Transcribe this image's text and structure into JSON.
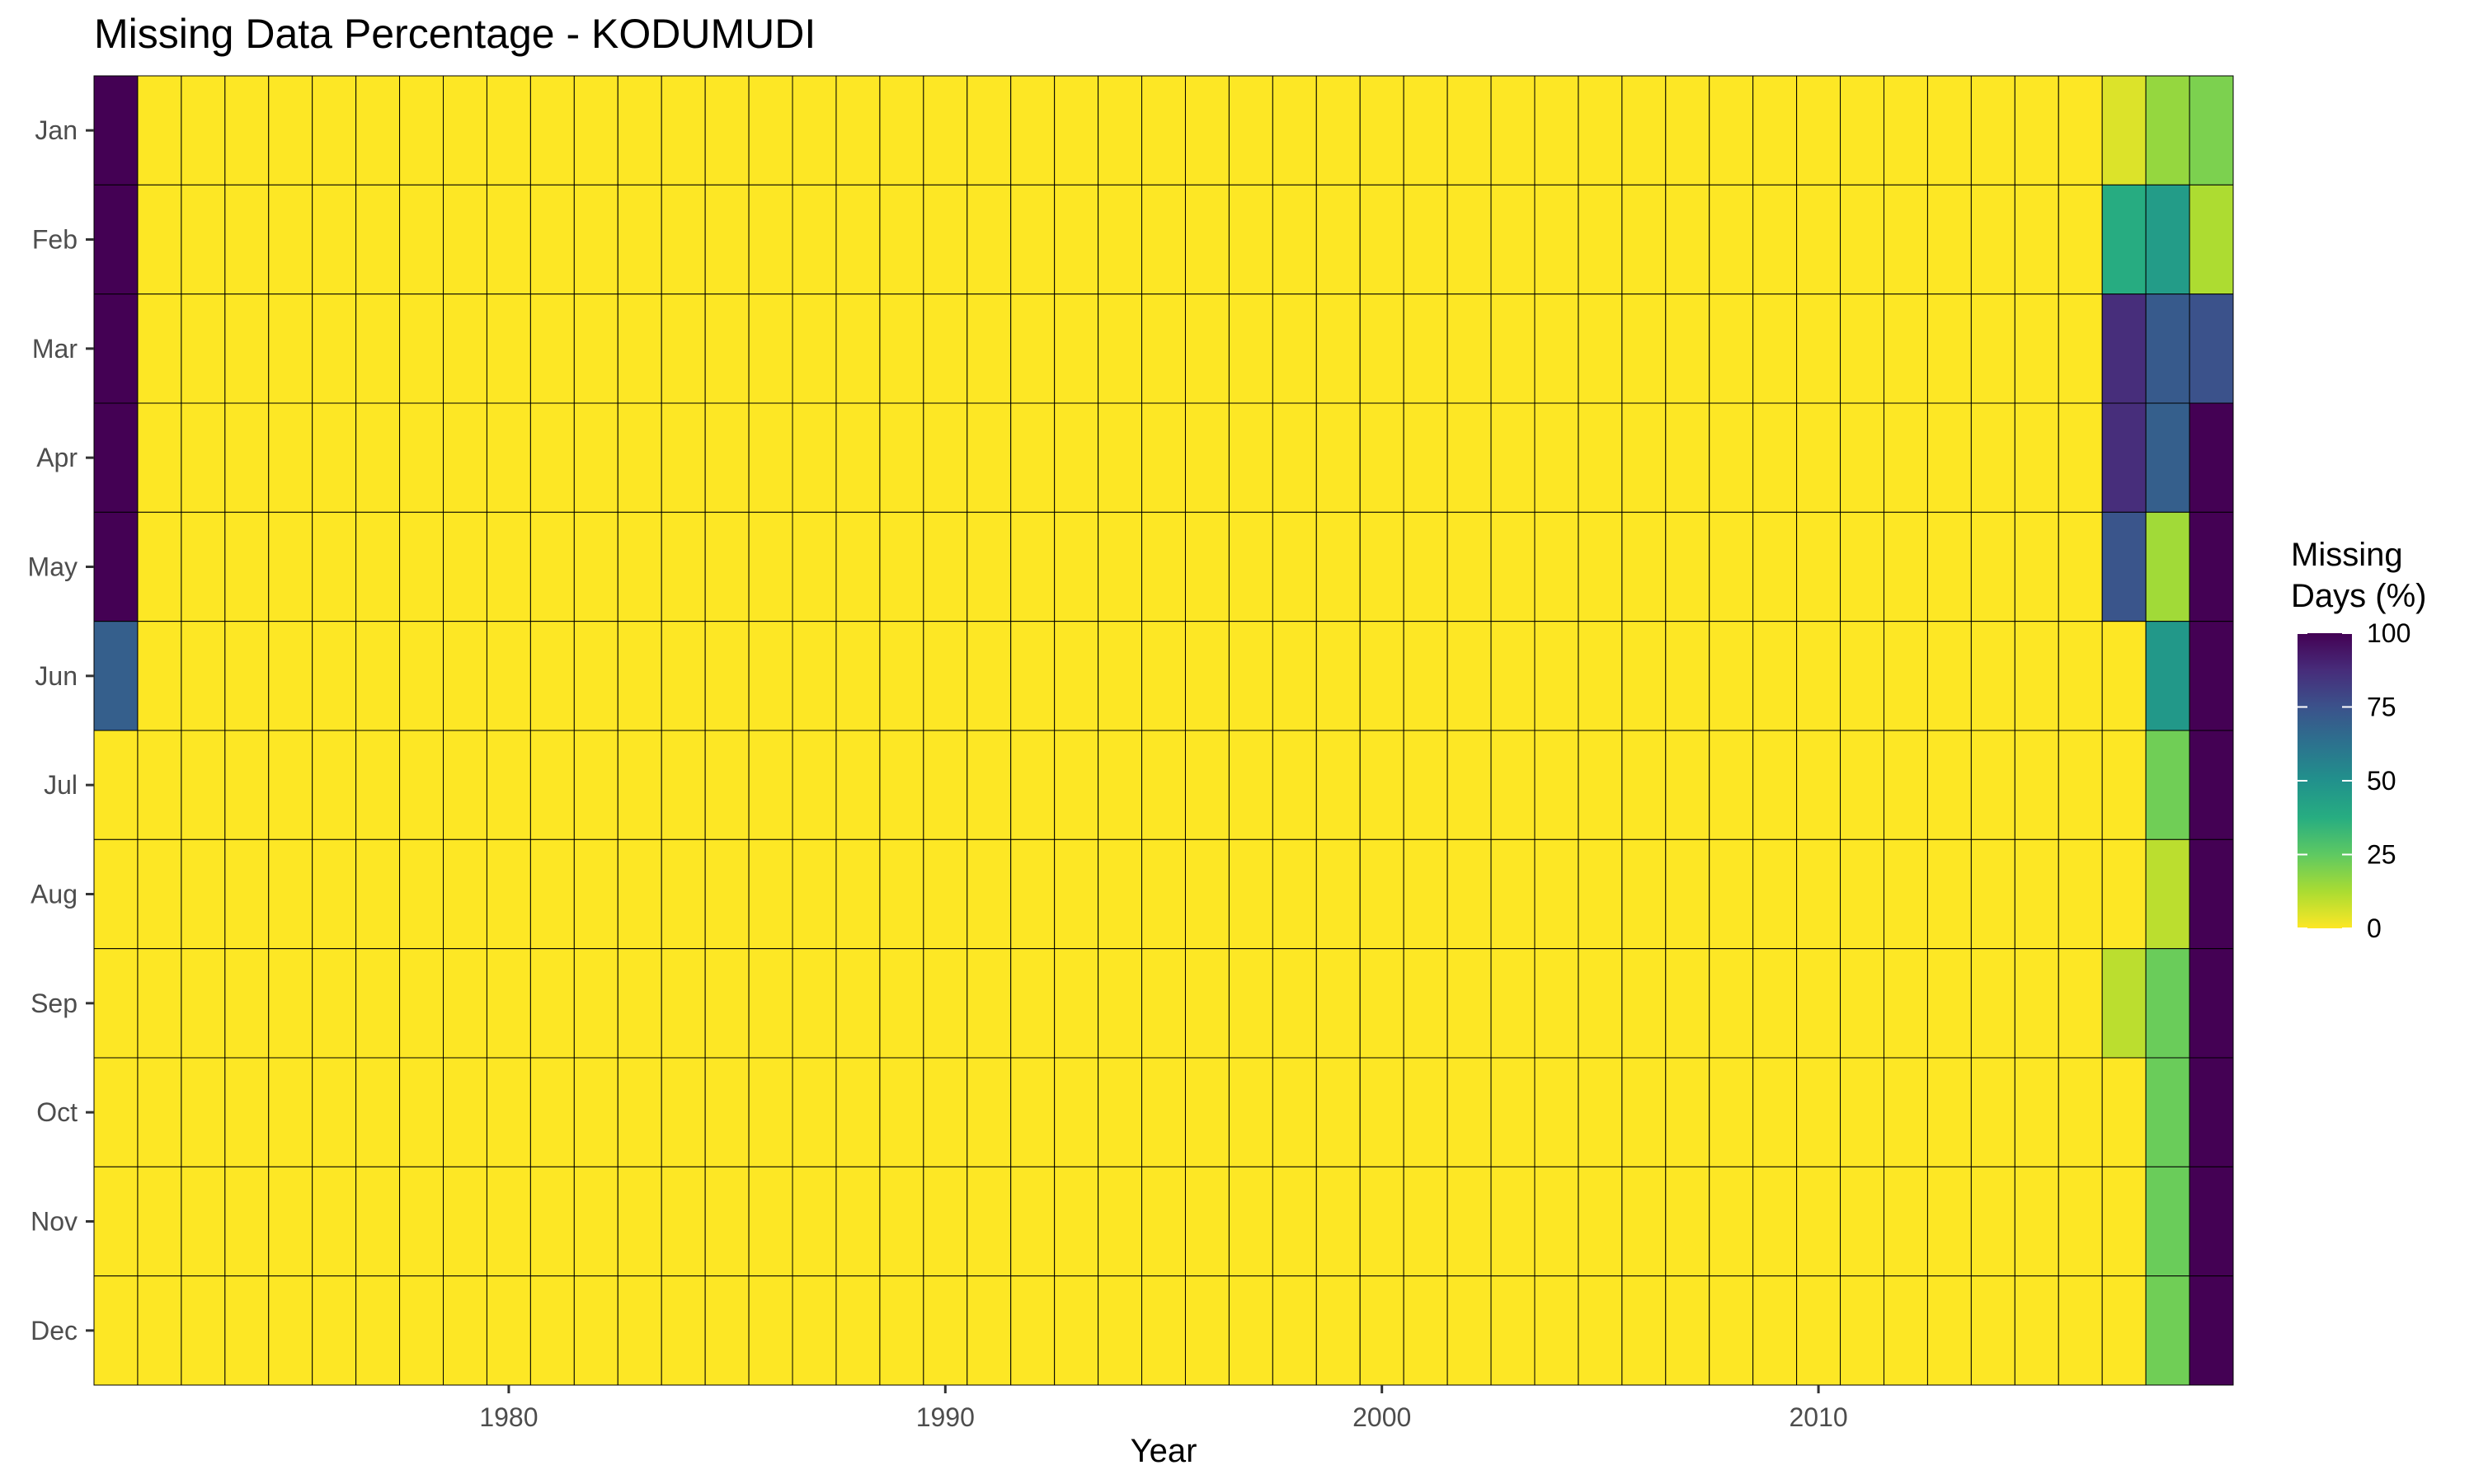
{
  "chart_data": {
    "type": "heatmap",
    "title": "Missing Data Percentage - KODUMUDI",
    "xlabel": "Year",
    "ylabel": "",
    "x_start": 1971,
    "x_end": 2019,
    "x_ticks": [
      1980,
      1990,
      2000,
      2010
    ],
    "months": [
      "Jan",
      "Feb",
      "Mar",
      "Apr",
      "May",
      "Jun",
      "Jul",
      "Aug",
      "Sep",
      "Oct",
      "Nov",
      "Dec"
    ],
    "default_value": 0,
    "cells": [
      {
        "year": 1971,
        "month": "Jan",
        "value": 100
      },
      {
        "year": 1971,
        "month": "Feb",
        "value": 100
      },
      {
        "year": 1971,
        "month": "Mar",
        "value": 100
      },
      {
        "year": 1971,
        "month": "Apr",
        "value": 100
      },
      {
        "year": 1971,
        "month": "May",
        "value": 100
      },
      {
        "year": 1971,
        "month": "Jun",
        "value": 70
      },
      {
        "year": 2017,
        "month": "Jan",
        "value": 5
      },
      {
        "year": 2017,
        "month": "Feb",
        "value": 38
      },
      {
        "year": 2017,
        "month": "Mar",
        "value": 87
      },
      {
        "year": 2017,
        "month": "Apr",
        "value": 87
      },
      {
        "year": 2017,
        "month": "May",
        "value": 74
      },
      {
        "year": 2017,
        "month": "Sep",
        "value": 10
      },
      {
        "year": 2018,
        "month": "Jan",
        "value": 16
      },
      {
        "year": 2018,
        "month": "Feb",
        "value": 45
      },
      {
        "year": 2018,
        "month": "Mar",
        "value": 72
      },
      {
        "year": 2018,
        "month": "Apr",
        "value": 70
      },
      {
        "year": 2018,
        "month": "May",
        "value": 14
      },
      {
        "year": 2018,
        "month": "Jun",
        "value": 47
      },
      {
        "year": 2018,
        "month": "Jul",
        "value": 22
      },
      {
        "year": 2018,
        "month": "Aug",
        "value": 10
      },
      {
        "year": 2018,
        "month": "Sep",
        "value": 23
      },
      {
        "year": 2018,
        "month": "Oct",
        "value": 23
      },
      {
        "year": 2018,
        "month": "Nov",
        "value": 23
      },
      {
        "year": 2018,
        "month": "Dec",
        "value": 22
      },
      {
        "year": 2019,
        "month": "Jan",
        "value": 20
      },
      {
        "year": 2019,
        "month": "Feb",
        "value": 12
      },
      {
        "year": 2019,
        "month": "Mar",
        "value": 75
      },
      {
        "year": 2019,
        "month": "Apr",
        "value": 100
      },
      {
        "year": 2019,
        "month": "May",
        "value": 100
      },
      {
        "year": 2019,
        "month": "Jun",
        "value": 100
      },
      {
        "year": 2019,
        "month": "Jul",
        "value": 100
      },
      {
        "year": 2019,
        "month": "Aug",
        "value": 100
      },
      {
        "year": 2019,
        "month": "Sep",
        "value": 100
      },
      {
        "year": 2019,
        "month": "Oct",
        "value": 100
      },
      {
        "year": 2019,
        "month": "Nov",
        "value": 100
      },
      {
        "year": 2019,
        "month": "Dec",
        "value": 100
      }
    ],
    "legend": {
      "title_line1": "Missing",
      "title_line2": "Days (%)",
      "ticks": [
        0,
        25,
        50,
        75,
        100
      ],
      "placement": "right",
      "colormap": "viridis-reversed"
    },
    "colors": {
      "low": "#FDE725",
      "high": "#440154",
      "cell_border": "#000000"
    }
  }
}
